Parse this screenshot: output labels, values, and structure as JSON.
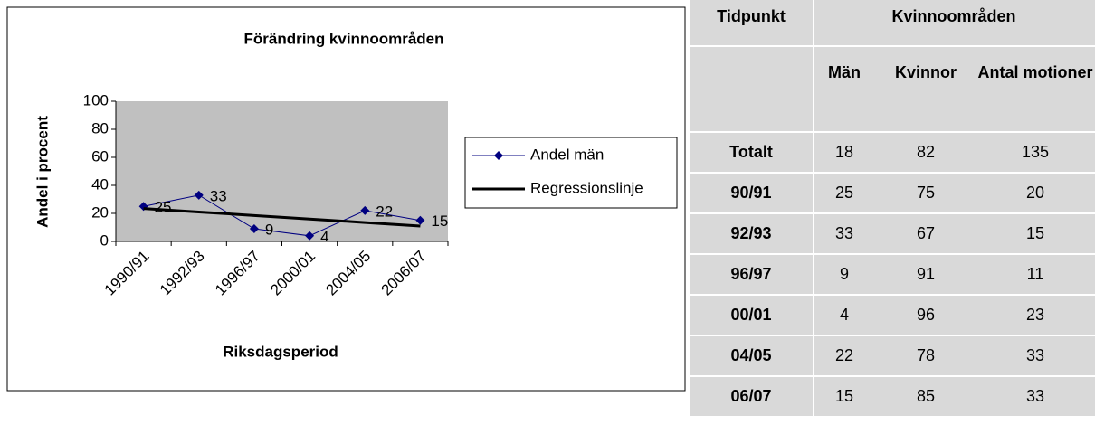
{
  "chart_data": {
    "type": "line",
    "title": "Förändring kvinnoområden",
    "y_label": "Andel i procent",
    "x_label": "Riksdagsperiod",
    "categories": [
      "1990/91",
      "1992/93",
      "1996/97",
      "2000/01",
      "2004/05",
      "2006/07"
    ],
    "series": [
      {
        "name": "Andel män",
        "color": "#000080",
        "marker": "diamond",
        "data_labels": true,
        "values": [
          25,
          33,
          9,
          4,
          22,
          15
        ]
      },
      {
        "name": "Regressionslinje",
        "color": "#000000",
        "marker": "none",
        "data_labels": false,
        "values": [
          23.5,
          21,
          18.5,
          16,
          13.5,
          11
        ]
      }
    ],
    "ylim": [
      0,
      100
    ],
    "yticks": [
      0,
      20,
      40,
      60,
      80,
      100
    ],
    "grid": false,
    "legend": "right",
    "plot_background": "#c0c0c0"
  },
  "table": {
    "header": [
      "Tidpunkt",
      "Kvinnoområden"
    ],
    "subheader": [
      "Män",
      "Kvinnor",
      "Antal motioner"
    ],
    "rows": [
      [
        "Totalt",
        18,
        82,
        135
      ],
      [
        "90/91",
        25,
        75,
        20
      ],
      [
        "92/93",
        33,
        67,
        15
      ],
      [
        "96/97",
        9,
        91,
        11
      ],
      [
        "00/01",
        4,
        96,
        23
      ],
      [
        "04/05",
        22,
        78,
        33
      ],
      [
        "06/07",
        15,
        85,
        33
      ]
    ]
  }
}
